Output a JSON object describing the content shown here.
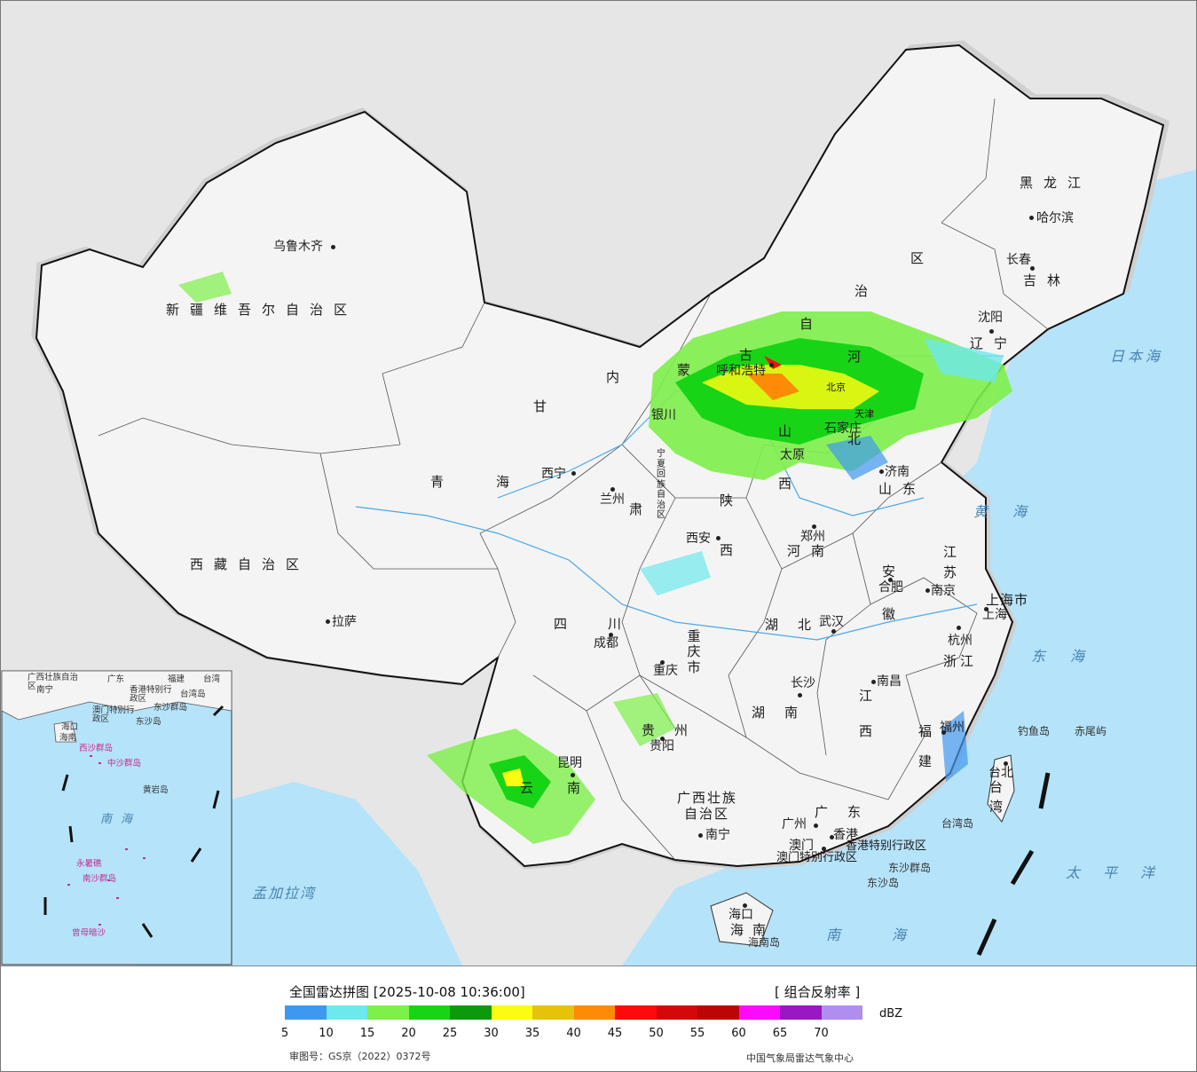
{
  "map": {
    "provinces": [
      {
        "key": "xinjiang",
        "text": "新疆维吾尔自治区"
      },
      {
        "key": "xizang",
        "text": "西藏自治区"
      },
      {
        "key": "qinghai_a",
        "text": "青"
      },
      {
        "key": "qinghai_b",
        "text": "海"
      },
      {
        "key": "gansu_a",
        "text": "甘"
      },
      {
        "key": "gansu_b",
        "text": "肃"
      },
      {
        "key": "neimeng_1",
        "text": "内"
      },
      {
        "key": "neimeng_2",
        "text": "蒙"
      },
      {
        "key": "neimeng_3",
        "text": "古"
      },
      {
        "key": "neimeng_4",
        "text": "自"
      },
      {
        "key": "neimeng_5",
        "text": "治"
      },
      {
        "key": "neimeng_6",
        "text": "区"
      },
      {
        "key": "heilongjiang",
        "text": "黑龙江"
      },
      {
        "key": "jilin",
        "text": "吉林"
      },
      {
        "key": "liaoning",
        "text": "辽宁"
      },
      {
        "key": "hebei_a",
        "text": "河"
      },
      {
        "key": "hebei_b",
        "text": "北"
      },
      {
        "key": "shanxi_a",
        "text": "山"
      },
      {
        "key": "shanxi_b",
        "text": "西"
      },
      {
        "key": "shandong",
        "text": "山东"
      },
      {
        "key": "henan",
        "text": "河南"
      },
      {
        "key": "shaanxi_a",
        "text": "陕"
      },
      {
        "key": "shaanxi_b",
        "text": "西"
      },
      {
        "key": "ningxia",
        "text": "宁夏回族自治区"
      },
      {
        "key": "sichuan",
        "text": "四川"
      },
      {
        "key": "chongqing",
        "text": "重庆市"
      },
      {
        "key": "hubei",
        "text": "湖北"
      },
      {
        "key": "anhui_a",
        "text": "安"
      },
      {
        "key": "anhui_b",
        "text": "徽"
      },
      {
        "key": "jiangsu_a",
        "text": "江"
      },
      {
        "key": "jiangsu_b",
        "text": "苏"
      },
      {
        "key": "shanghai",
        "text": "上海市"
      },
      {
        "key": "zhejiang",
        "text": "浙江"
      },
      {
        "key": "jiangxi_a",
        "text": "江"
      },
      {
        "key": "jiangxi_b",
        "text": "西"
      },
      {
        "key": "hunan",
        "text": "湖南"
      },
      {
        "key": "guizhou",
        "text": "贵州"
      },
      {
        "key": "yunnan_a",
        "text": "云"
      },
      {
        "key": "yunnan_b",
        "text": "南"
      },
      {
        "key": "guangxi_a",
        "text": "广西壮族"
      },
      {
        "key": "guangxi_b",
        "text": "自治区"
      },
      {
        "key": "guangdong",
        "text": "广东"
      },
      {
        "key": "fujian_a",
        "text": "福"
      },
      {
        "key": "fujian_b",
        "text": "建"
      },
      {
        "key": "taiwan_a",
        "text": "台"
      },
      {
        "key": "taiwan_b",
        "text": "湾"
      },
      {
        "key": "hainan",
        "text": "海南"
      },
      {
        "key": "hk",
        "text": "香港特别行政区"
      },
      {
        "key": "macau",
        "text": "澳门特别行政区"
      },
      {
        "key": "tianjin",
        "text": "天津"
      },
      {
        "key": "beijing",
        "text": "北京"
      }
    ],
    "cities": [
      {
        "key": "urumqi",
        "text": "乌鲁木齐"
      },
      {
        "key": "lhasa",
        "text": "拉萨"
      },
      {
        "key": "xining",
        "text": "西宁"
      },
      {
        "key": "lanzhou",
        "text": "兰州"
      },
      {
        "key": "yinchuan",
        "text": "银川"
      },
      {
        "key": "hohhot",
        "text": "呼和浩特"
      },
      {
        "key": "xian",
        "text": "西安"
      },
      {
        "key": "taiyuan",
        "text": "太原"
      },
      {
        "key": "zhengzhou",
        "text": "郑州"
      },
      {
        "key": "jinan",
        "text": "济南"
      },
      {
        "key": "shijiazhuang",
        "text": "石家庄"
      },
      {
        "key": "shenyang",
        "text": "沈阳"
      },
      {
        "key": "changchun",
        "text": "长春"
      },
      {
        "key": "harbin",
        "text": "哈尔滨"
      },
      {
        "key": "chengdu",
        "text": "成都"
      },
      {
        "key": "chongqing",
        "text": "重庆"
      },
      {
        "key": "wuhan",
        "text": "武汉"
      },
      {
        "key": "hefei",
        "text": "合肥"
      },
      {
        "key": "nanjing",
        "text": "南京"
      },
      {
        "key": "shanghai",
        "text": "上海"
      },
      {
        "key": "hangzhou",
        "text": "杭州"
      },
      {
        "key": "nanchang",
        "text": "南昌"
      },
      {
        "key": "changsha",
        "text": "长沙"
      },
      {
        "key": "guiyang",
        "text": "贵阳"
      },
      {
        "key": "kunming",
        "text": "昆明"
      },
      {
        "key": "nanning",
        "text": "南宁"
      },
      {
        "key": "guangzhou",
        "text": "广州"
      },
      {
        "key": "macau",
        "text": "澳门"
      },
      {
        "key": "hongkong",
        "text": "香港"
      },
      {
        "key": "fuzhou",
        "text": "福州"
      },
      {
        "key": "taipei",
        "text": "台北"
      },
      {
        "key": "haikou",
        "text": "海口"
      }
    ],
    "seas": [
      {
        "key": "japan_sea",
        "text": "日本海"
      },
      {
        "key": "yellow_sea",
        "text": "黄海"
      },
      {
        "key": "east_sea",
        "text": "东海"
      },
      {
        "key": "pacific",
        "text": "太平洋"
      },
      {
        "key": "south_sea",
        "text": "南海"
      },
      {
        "key": "bengal",
        "text": "孟加拉湾"
      }
    ],
    "islands": [
      {
        "key": "diaoyu",
        "text": "钓鱼岛"
      },
      {
        "key": "chiwei",
        "text": "赤尾屿"
      },
      {
        "key": "taiwan_isl",
        "text": "台湾岛"
      },
      {
        "key": "dongsha_q",
        "text": "东沙群岛"
      },
      {
        "key": "dongsha",
        "text": "东沙岛"
      },
      {
        "key": "hainan_isl",
        "text": "海南岛"
      }
    ],
    "inset": [
      {
        "key": "i_gx",
        "text": "广西壮族自治区"
      },
      {
        "key": "i_nn",
        "text": "南宁"
      },
      {
        "key": "i_gd",
        "text": "广东"
      },
      {
        "key": "i_fj",
        "text": "福建"
      },
      {
        "key": "i_tw",
        "text": "台湾"
      },
      {
        "key": "i_hk",
        "text": "香港特别行政区"
      },
      {
        "key": "i_mo",
        "text": "澳门特别行政区"
      },
      {
        "key": "i_twd",
        "text": "台湾岛"
      },
      {
        "key": "i_dsq",
        "text": "东沙群岛"
      },
      {
        "key": "i_ds",
        "text": "东沙岛"
      },
      {
        "key": "i_hk2",
        "text": "海口"
      },
      {
        "key": "i_hn",
        "text": "海南"
      },
      {
        "key": "i_xsq",
        "text": "西沙群岛"
      },
      {
        "key": "i_zsq",
        "text": "中沙群岛"
      },
      {
        "key": "i_hyd",
        "text": "黄岩岛"
      },
      {
        "key": "i_nh",
        "text": "南海"
      },
      {
        "key": "i_ysj",
        "text": "永暑礁"
      },
      {
        "key": "i_nsq",
        "text": "南沙群岛"
      },
      {
        "key": "i_zmas",
        "text": "曾母暗沙"
      }
    ]
  },
  "legend": {
    "title": "全国雷达拼图 [2025-10-08 10:36:00]",
    "product": "[ 组合反射率 ]",
    "unit": "dBZ",
    "ticks": [
      "5",
      "10",
      "15",
      "20",
      "25",
      "30",
      "35",
      "40",
      "45",
      "50",
      "55",
      "60",
      "65",
      "70"
    ],
    "colors": [
      "#3f98f0",
      "#6ee8ec",
      "#7df04a",
      "#18d416",
      "#0c9a0c",
      "#fcfc12",
      "#e7c20a",
      "#fc8c05",
      "#fe0a0a",
      "#d40808",
      "#bc0606",
      "#fc0afc",
      "#9a18c2",
      "#b08ef0"
    ],
    "approval": "审图号：GS京（2022）0372号",
    "org": "中国气象局雷达气象中心"
  }
}
